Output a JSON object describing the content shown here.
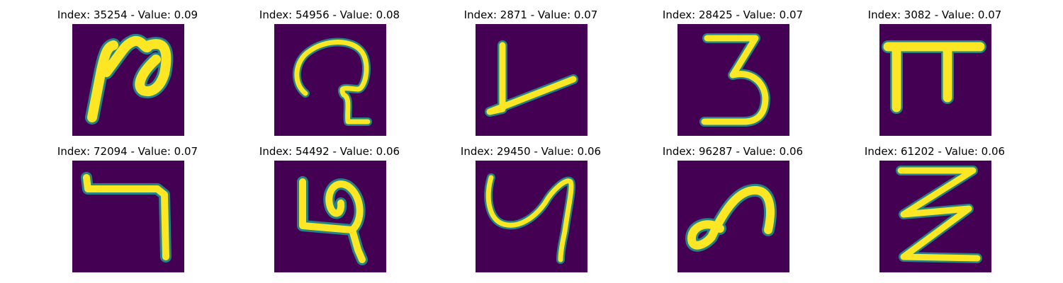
{
  "panels": [
    {
      "title": "Index: 35254 - Value: 0.09",
      "glyph": "glyph-1"
    },
    {
      "title": "Index: 54956 - Value: 0.08",
      "glyph": "glyph-2"
    },
    {
      "title": "Index: 2871 - Value: 0.07",
      "glyph": "glyph-3"
    },
    {
      "title": "Index: 28425 - Value: 0.07",
      "glyph": "glyph-4"
    },
    {
      "title": "Index: 3082 - Value: 0.07",
      "glyph": "glyph-5"
    },
    {
      "title": "Index: 72094 - Value: 0.07",
      "glyph": "glyph-6"
    },
    {
      "title": "Index: 54492 - Value: 0.06",
      "glyph": "glyph-7"
    },
    {
      "title": "Index: 29450 - Value: 0.06",
      "glyph": "glyph-8"
    },
    {
      "title": "Index: 96287 - Value: 0.06",
      "glyph": "glyph-9"
    },
    {
      "title": "Index: 61202 - Value: 0.06",
      "glyph": "glyph-10"
    }
  ],
  "colors": {
    "background": "#440154",
    "stroke": "#fde725",
    "edge": "#21918c"
  }
}
